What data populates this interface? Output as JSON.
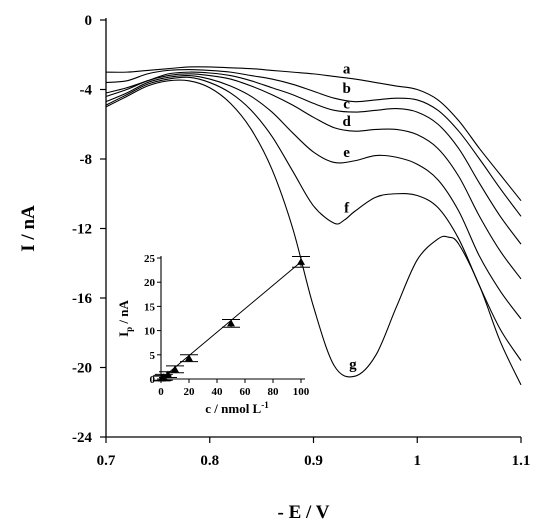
{
  "chart_data": [
    {
      "type": "line",
      "xlabel": "- E / V",
      "ylabel": "I / nA",
      "xlim": [
        0.7,
        1.1
      ],
      "ylim": [
        -24,
        0
      ],
      "xticks": [
        0.7,
        0.8,
        0.9,
        1.0,
        1.1
      ],
      "xtick_labels": [
        "0.7",
        "0.8",
        "0.9",
        "1",
        "1.1"
      ],
      "yticks": [
        0,
        -4,
        -8,
        -12,
        -16,
        -20,
        -24
      ],
      "ytick_labels": [
        "0",
        "-4",
        "-8",
        "-12",
        "-16",
        "-20",
        "-24"
      ],
      "legend": "none",
      "curve_labels": [
        {
          "text": "a",
          "x": 0.93,
          "y": -2.8
        },
        {
          "text": "b",
          "x": 0.93,
          "y": -3.9
        },
        {
          "text": "c",
          "x": 0.93,
          "y": -4.8
        },
        {
          "text": "d",
          "x": 0.93,
          "y": -5.8
        },
        {
          "text": "e",
          "x": 0.93,
          "y": -7.6
        },
        {
          "text": "f",
          "x": 0.93,
          "y": -10.8
        },
        {
          "text": "g",
          "x": 0.936,
          "y": -19.8
        }
      ],
      "series": [
        {
          "x": [
            0.7,
            0.72,
            0.74,
            0.76,
            0.78,
            0.8,
            0.82,
            0.84,
            0.86,
            0.88,
            0.9,
            0.92,
            0.94,
            0.96,
            0.98,
            1.0,
            1.02,
            1.04,
            1.06,
            1.08,
            1.1
          ],
          "y": [
            -3.0,
            -3.0,
            -2.9,
            -2.8,
            -2.7,
            -2.7,
            -2.75,
            -2.8,
            -2.9,
            -3.0,
            -3.1,
            -3.25,
            -3.4,
            -3.6,
            -3.8,
            -4.0,
            -4.6,
            -5.8,
            -7.4,
            -8.9,
            -10.4
          ]
        },
        {
          "x": [
            0.7,
            0.72,
            0.74,
            0.76,
            0.78,
            0.8,
            0.82,
            0.84,
            0.86,
            0.88,
            0.9,
            0.92,
            0.94,
            0.96,
            0.98,
            1.0,
            1.02,
            1.04,
            1.06,
            1.08,
            1.1
          ],
          "y": [
            -3.6,
            -3.5,
            -3.1,
            -2.9,
            -2.85,
            -2.9,
            -3.0,
            -3.2,
            -3.4,
            -3.7,
            -4.1,
            -4.5,
            -4.7,
            -4.6,
            -4.5,
            -4.6,
            -5.2,
            -6.4,
            -8.0,
            -9.7,
            -11.3
          ]
        },
        {
          "x": [
            0.7,
            0.72,
            0.74,
            0.76,
            0.78,
            0.8,
            0.82,
            0.84,
            0.86,
            0.88,
            0.9,
            0.92,
            0.94,
            0.96,
            0.98,
            1.0,
            1.02,
            1.04,
            1.06,
            1.08,
            1.1
          ],
          "y": [
            -4.2,
            -3.9,
            -3.5,
            -3.1,
            -3.0,
            -3.05,
            -3.2,
            -3.5,
            -3.9,
            -4.3,
            -4.8,
            -5.2,
            -5.3,
            -5.2,
            -5.1,
            -5.3,
            -6.0,
            -7.4,
            -9.4,
            -11.3,
            -12.9
          ]
        },
        {
          "x": [
            0.7,
            0.72,
            0.74,
            0.76,
            0.78,
            0.8,
            0.82,
            0.84,
            0.86,
            0.88,
            0.9,
            0.92,
            0.94,
            0.96,
            0.98,
            1.0,
            1.02,
            1.04,
            1.06,
            1.08,
            1.1
          ],
          "y": [
            -4.4,
            -4.0,
            -3.5,
            -3.2,
            -3.1,
            -3.2,
            -3.4,
            -3.8,
            -4.3,
            -4.9,
            -5.6,
            -6.2,
            -6.4,
            -6.3,
            -6.3,
            -6.6,
            -7.4,
            -9.0,
            -11.3,
            -13.3,
            -14.9
          ]
        },
        {
          "x": [
            0.7,
            0.72,
            0.74,
            0.76,
            0.78,
            0.8,
            0.82,
            0.84,
            0.86,
            0.88,
            0.9,
            0.92,
            0.94,
            0.96,
            0.98,
            1.0,
            1.02,
            1.04,
            1.06,
            1.08,
            1.1
          ],
          "y": [
            -4.7,
            -4.2,
            -3.6,
            -3.3,
            -3.2,
            -3.4,
            -3.8,
            -4.4,
            -5.3,
            -6.5,
            -7.6,
            -8.2,
            -8.1,
            -7.8,
            -7.9,
            -8.3,
            -9.2,
            -11.0,
            -13.6,
            -15.6,
            -17.2
          ]
        },
        {
          "x": [
            0.7,
            0.72,
            0.74,
            0.76,
            0.78,
            0.8,
            0.82,
            0.84,
            0.86,
            0.88,
            0.9,
            0.92,
            0.93,
            0.94,
            0.96,
            0.98,
            1.0,
            1.02,
            1.04,
            1.06,
            1.08,
            1.1
          ],
          "y": [
            -4.9,
            -4.3,
            -3.7,
            -3.4,
            -3.3,
            -3.6,
            -4.2,
            -5.2,
            -6.7,
            -8.7,
            -10.7,
            -11.7,
            -11.5,
            -11.0,
            -10.2,
            -10.0,
            -10.1,
            -10.8,
            -12.6,
            -15.3,
            -17.8,
            -19.6
          ]
        },
        {
          "x": [
            0.7,
            0.72,
            0.74,
            0.76,
            0.78,
            0.8,
            0.82,
            0.84,
            0.86,
            0.88,
            0.9,
            0.92,
            0.94,
            0.96,
            0.98,
            1.0,
            1.02,
            1.03,
            1.04,
            1.06,
            1.08,
            1.1
          ],
          "y": [
            -5.0,
            -4.4,
            -3.8,
            -3.5,
            -3.5,
            -3.9,
            -4.8,
            -6.3,
            -8.6,
            -12.0,
            -16.5,
            -19.9,
            -20.5,
            -19.3,
            -16.5,
            -13.8,
            -12.6,
            -12.5,
            -12.9,
            -15.3,
            -18.5,
            -21.0
          ]
        }
      ]
    },
    {
      "type": "scatter",
      "xlabel": "c / nmol L",
      "xlabel_sup": "-1",
      "ylabel": "I",
      "ylabel_sub": "p",
      "ylabel_rest": " / nA",
      "xlim": [
        0,
        100
      ],
      "ylim": [
        0,
        25
      ],
      "xticks": [
        0,
        20,
        40,
        60,
        80,
        100
      ],
      "xtick_labels": [
        "0",
        "20",
        "40",
        "60",
        "80",
        "100"
      ],
      "yticks": [
        0,
        5,
        10,
        15,
        20,
        25
      ],
      "ytick_labels": [
        "0",
        "5",
        "10",
        "15",
        "20",
        "25"
      ],
      "fit_line": true,
      "legend": "none",
      "points": [
        {
          "x": 0.5,
          "y": 0.1,
          "err": 0.5
        },
        {
          "x": 1,
          "y": 0.2,
          "err": 0.5
        },
        {
          "x": 2,
          "y": 0.35,
          "err": 0.6
        },
        {
          "x": 5,
          "y": 0.9,
          "err": 0.6
        },
        {
          "x": 10,
          "y": 2.0,
          "err": 0.7
        },
        {
          "x": 20,
          "y": 4.3,
          "err": 0.7
        },
        {
          "x": 50,
          "y": 11.5,
          "err": 0.8
        },
        {
          "x": 100,
          "y": 24.2,
          "err": 1.1
        }
      ]
    }
  ]
}
